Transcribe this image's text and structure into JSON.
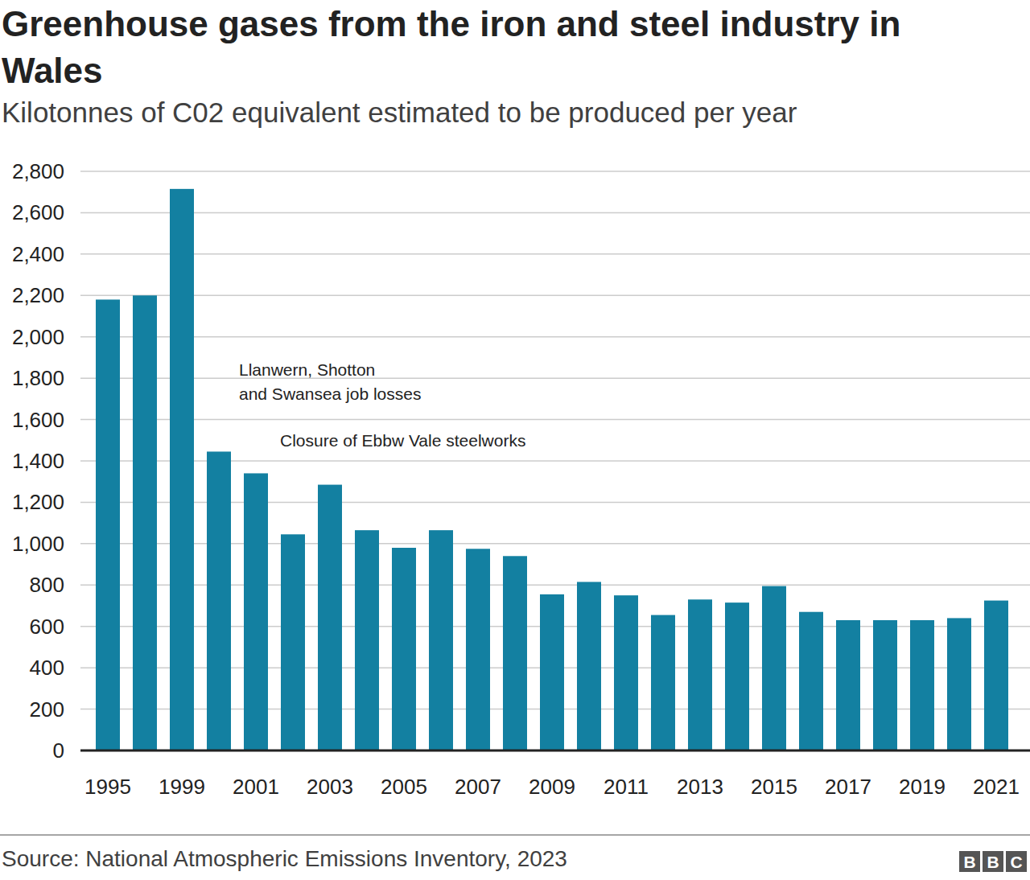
{
  "chart_data": {
    "type": "bar",
    "title": "Greenhouse gases from the iron and steel industry in Wales",
    "title_lines": [
      "Greenhouse gases from the iron and steel industry in",
      "Wales"
    ],
    "subtitle": "Kilotonnes of C02 equivalent estimated to be produced per year",
    "categories": [
      "1995",
      null,
      "1999",
      null,
      "2001",
      null,
      "2003",
      null,
      "2005",
      null,
      "2007",
      null,
      "2009",
      null,
      "2011",
      null,
      "2013",
      null,
      "2015",
      null,
      "2017",
      null,
      "2019",
      null,
      "2021"
    ],
    "values": [
      2180,
      2200,
      2715,
      1445,
      1340,
      1045,
      1285,
      1065,
      980,
      1065,
      975,
      940,
      755,
      815,
      750,
      655,
      730,
      715,
      795,
      670,
      630,
      630,
      630,
      640,
      725
    ],
    "color": "#1380a1",
    "ylim": [
      0,
      2800
    ],
    "yticks": [
      0,
      200,
      400,
      600,
      800,
      {
        "value": 1000,
        "label": "1,000"
      },
      {
        "value": 1200,
        "label": "1,200"
      },
      {
        "value": 1400,
        "label": "1,400"
      },
      {
        "value": 1600,
        "label": "1,600"
      },
      {
        "value": 1800,
        "label": "1,800"
      },
      {
        "value": 2000,
        "label": "2,000"
      },
      {
        "value": 2200,
        "label": "2,200"
      },
      {
        "value": 2400,
        "label": "2,400"
      },
      {
        "value": 2600,
        "label": "2,600"
      },
      {
        "value": 2800,
        "label": "2,800"
      }
    ],
    "grid": true,
    "annotations": [
      {
        "lines": [
          "Llanwern, Shotton",
          "and Swansea job losses"
        ]
      },
      {
        "lines": [
          "Closure of Ebbw Vale steelworks"
        ]
      }
    ],
    "source": "Source: National Atmospheric Emissions Inventory, 2023",
    "logo": "BBC"
  }
}
